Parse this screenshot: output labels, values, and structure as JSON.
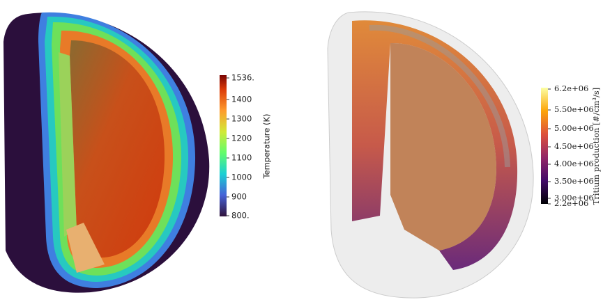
{
  "left_colorbar": {
    "title": "Temperature (K)",
    "ticks": [
      "1536.",
      "1400",
      "1300",
      "1200",
      "1100",
      "1000",
      "900",
      "800."
    ]
  },
  "right_colorbar": {
    "title": "Tritium production [#/cm³/s]",
    "ticks": [
      "6.2e+06",
      "5.50e+06",
      "5.00e+06",
      "4.50e+06",
      "4.00e+06",
      "3.50e+06",
      "3.00e+06",
      "2.2e+06"
    ]
  }
}
